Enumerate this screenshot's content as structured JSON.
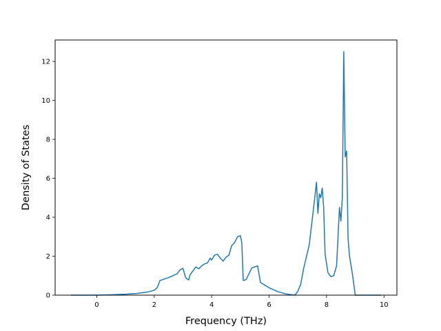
{
  "chart_data": {
    "type": "line",
    "title": "",
    "xlabel": "Frequency (THz)",
    "ylabel": "Density of States",
    "xlim": [
      -1.45,
      10.45
    ],
    "ylim": [
      0,
      13.1
    ],
    "grid": false,
    "legend": "none",
    "x_ticks": [
      0,
      2,
      4,
      6,
      8,
      10
    ],
    "y_ticks": [
      0,
      2,
      4,
      6,
      8,
      10,
      12
    ],
    "x_tick_labels": [
      "0",
      "2",
      "4",
      "6",
      "8",
      "10"
    ],
    "y_tick_labels": [
      "0",
      "2",
      "4",
      "6",
      "8",
      "10",
      "12"
    ],
    "line_color": "#1f77b4",
    "series": [
      {
        "x": [
          -0.9,
          -0.5,
          0.0,
          0.5,
          1.0,
          1.4,
          1.8,
          2.0,
          2.1,
          2.15,
          2.2,
          2.5,
          2.8,
          2.9,
          3.0,
          3.1,
          3.2,
          3.25,
          3.35,
          3.45,
          3.55,
          3.65,
          3.75,
          3.85,
          3.95,
          4.0,
          4.1,
          4.2,
          4.3,
          4.4,
          4.5,
          4.6,
          4.7,
          4.8,
          4.9,
          5.0,
          5.05,
          5.1,
          5.2,
          5.3,
          5.4,
          5.6,
          5.7,
          6.0,
          6.3,
          6.6,
          6.9,
          7.0,
          7.1,
          7.2,
          7.4,
          7.55,
          7.65,
          7.7,
          7.75,
          7.8,
          7.85,
          7.9,
          7.95,
          8.05,
          8.15,
          8.25,
          8.35,
          8.45,
          8.5,
          8.55,
          8.6,
          8.65,
          8.7,
          8.75,
          8.8,
          8.9,
          9.0,
          9.1,
          9.5,
          9.9
        ],
        "y": [
          0.0,
          0.0,
          0.0,
          0.02,
          0.05,
          0.09,
          0.17,
          0.25,
          0.38,
          0.55,
          0.75,
          0.9,
          1.1,
          1.3,
          1.38,
          0.88,
          0.78,
          1.05,
          1.25,
          1.45,
          1.35,
          1.5,
          1.6,
          1.65,
          1.9,
          1.8,
          2.05,
          2.1,
          1.9,
          1.75,
          1.95,
          2.05,
          2.55,
          2.7,
          3.0,
          3.05,
          2.7,
          0.75,
          0.8,
          1.1,
          1.4,
          1.5,
          0.65,
          0.38,
          0.18,
          0.06,
          0.0,
          0.2,
          0.55,
          1.35,
          2.6,
          4.5,
          5.8,
          4.2,
          5.2,
          5.0,
          5.5,
          4.5,
          2.1,
          1.15,
          0.95,
          1.0,
          1.5,
          4.5,
          3.8,
          5.0,
          12.5,
          7.1,
          7.4,
          2.9,
          2.0,
          1.1,
          0.0,
          0.0,
          0.0,
          0.0
        ]
      }
    ]
  }
}
